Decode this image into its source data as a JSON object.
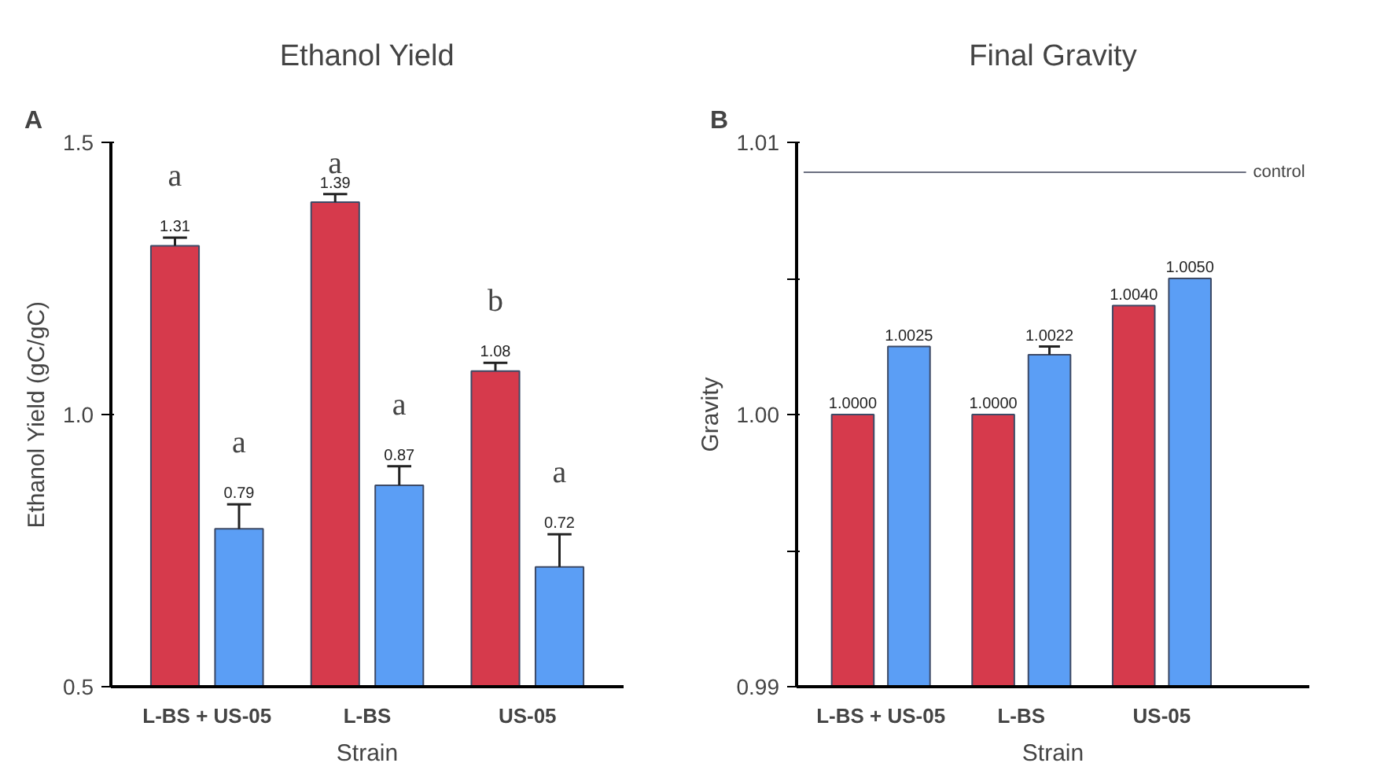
{
  "chart_data": [
    {
      "type": "bar",
      "title": "Ethanol Yield",
      "xlabel": "Strain",
      "ylabel": "Ethanol Yield (gC/gC)",
      "annotations": [
        "A",
        "a",
        "a",
        "a",
        "a",
        "b",
        "a"
      ],
      "categories": [
        "L-BS + US-05",
        "L-BS",
        "US-05"
      ],
      "series": [
        {
          "color": "#d63a4c",
          "values": [
            1.31,
            1.39,
            1.08
          ],
          "errors": [
            [
              1.31,
              1.325
            ],
            [
              1.39,
              1.405
            ],
            [
              1.08,
              1.095
            ]
          ],
          "value_labels": [
            "1.31",
            "1.39",
            "1.08"
          ]
        },
        {
          "color": "#5b9ef5",
          "values": [
            0.79,
            0.87,
            0.72
          ],
          "errors": [
            [
              0.79,
              0.835
            ],
            [
              0.87,
              0.905
            ],
            [
              0.72,
              0.78
            ]
          ],
          "value_labels": [
            "0.79",
            "0.87",
            "0.72"
          ]
        }
      ],
      "ylim": [
        0.5,
        1.5
      ],
      "yticks": [
        {
          "value": 0.5,
          "label": "0.5"
        },
        {
          "value": 1.0,
          "label": "1.0"
        },
        {
          "value": 1.5,
          "label": "1.5"
        }
      ],
      "grid": false
    },
    {
      "type": "bar",
      "title": "Final Gravity",
      "xlabel": "Strain",
      "ylabel": "Gravity",
      "annotations": [
        "B"
      ],
      "categories": [
        "L-BS + US-05",
        "L-BS",
        "US-05"
      ],
      "series": [
        {
          "color": "#d63a4c",
          "values": [
            1.0,
            1.0,
            1.004
          ],
          "errors": [
            null,
            null,
            null
          ],
          "value_labels": [
            "1.0000",
            "1.0000",
            "1.0040"
          ]
        },
        {
          "color": "#5b9ef5",
          "values": [
            1.0025,
            1.0022,
            1.005
          ],
          "errors": [
            null,
            [
              1.0022,
              1.0025
            ],
            null
          ],
          "value_labels": [
            "1.0025",
            "1.0022",
            "1.0050"
          ]
        }
      ],
      "ylim": [
        0.99,
        1.01
      ],
      "yticks": [
        {
          "value": 0.99,
          "label": "0.99"
        },
        {
          "value": 0.995,
          "label": null
        },
        {
          "value": 1.0,
          "label": "1.00"
        },
        {
          "value": 1.005,
          "label": null
        },
        {
          "value": 1.01,
          "label": "1.01"
        }
      ],
      "ref_lines": [
        {
          "axis": "y",
          "value": 1.0089,
          "label": "control",
          "color": "#6b6f80"
        }
      ],
      "grid": false
    }
  ]
}
